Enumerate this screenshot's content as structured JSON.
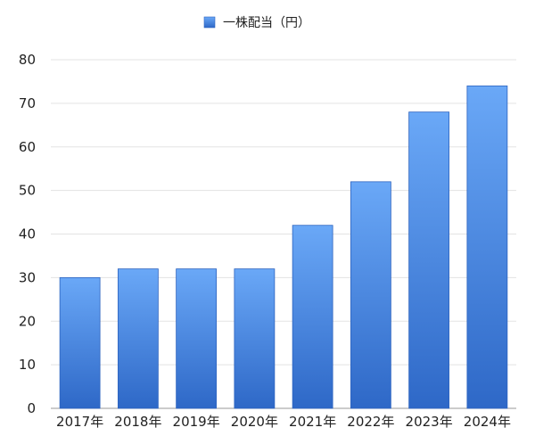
{
  "chart_data": {
    "type": "bar",
    "categories": [
      "2017年",
      "2018年",
      "2019年",
      "2020年",
      "2021年",
      "2022年",
      "2023年",
      "2024年"
    ],
    "series": [
      {
        "name": "一株配当（円）",
        "values": [
          30,
          32,
          32,
          32,
          42,
          52,
          68,
          74
        ]
      }
    ],
    "title": "",
    "xlabel": "",
    "ylabel": "",
    "ylim": [
      0,
      80
    ],
    "yticks": [
      "0",
      "10",
      "20",
      "30",
      "40",
      "50",
      "60",
      "70",
      "80"
    ],
    "grid": true,
    "legend_position": "top-center",
    "colors": {
      "bar_top": "#6aa8f7",
      "bar_bottom": "#2e68c7",
      "bar_edge": "#2d63bf"
    }
  }
}
